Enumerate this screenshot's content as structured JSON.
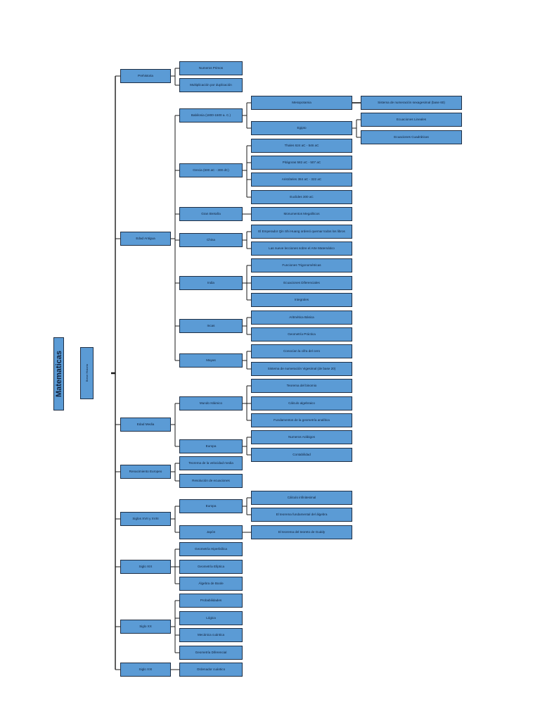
{
  "title": "Matematicas",
  "subtitle": "Breve Historia",
  "periods": [
    {
      "label": "Prehistoria",
      "children": [
        {
          "label": "Numeros Primos"
        },
        {
          "label": "Multiplicación por duplicación"
        }
      ]
    },
    {
      "label": "Edad Antigua",
      "children": [
        {
          "label": "Babilonia      (1800-1500 a. C.)",
          "children": [
            {
              "label": "Mesopotamia",
              "children": [
                {
                  "label": "Sistema de numeración sexagesimal (base 60)"
                }
              ]
            },
            {
              "label": "Egipto",
              "children": [
                {
                  "label": "Ecuaciones Lineales"
                },
                {
                  "label": "Ecuaciones Cuadráticas"
                }
              ]
            }
          ]
        },
        {
          "label": "Grecia (600 aC - 300 dC)",
          "children": [
            {
              "label": "Thales 624 aC - 546 aC"
            },
            {
              "label": "Pitágoras 582 aC - 507 aC"
            },
            {
              "label": "Aristóteles 384 aC - 322 aC"
            },
            {
              "label": "Euclides 300 aC"
            }
          ]
        },
        {
          "label": "Gran Bretaña",
          "children": [
            {
              "label": "Monumentos Megalíticos"
            }
          ]
        },
        {
          "label": "China",
          "children": [
            {
              "label": "El Emperador Qin Shi Huang ordenó quemar todos los libros"
            },
            {
              "label": "Las nueve lecciones sobre el Arte Matemático"
            }
          ]
        },
        {
          "label": "India",
          "children": [
            {
              "label": "Funciones Trigonométricas"
            },
            {
              "label": "Ecuaciones Diferenciales"
            },
            {
              "label": "Integrales"
            }
          ]
        },
        {
          "label": "Incas",
          "children": [
            {
              "label": "Aritmética Básica"
            },
            {
              "label": "Geometría Práctica"
            }
          ]
        },
        {
          "label": "Mayas",
          "children": [
            {
              "label": "Conocían la cifra del cero"
            },
            {
              "label": "Sistema de numeración Vigesimal (de base 20)"
            }
          ]
        }
      ]
    },
    {
      "label": "Edad Media",
      "children": [
        {
          "label": "Mundo Islámico",
          "children": [
            {
              "label": "Teorema del binomio"
            },
            {
              "label": "Cálculo algebraico"
            },
            {
              "label": "Fundamentos de la geometría analítica"
            }
          ]
        },
        {
          "label": "Europa",
          "children": [
            {
              "label": "Numeros Arábigos"
            },
            {
              "label": "Contabilidad"
            }
          ]
        }
      ]
    },
    {
      "label": "Renacimiento Europeo",
      "children": [
        {
          "label": "Teorema de la velocidad media"
        },
        {
          "label": "Resolución de ecuaciones"
        }
      ]
    },
    {
      "label": "Siglos XVII y XVIII",
      "children": [
        {
          "label": "Europa",
          "children": [
            {
              "label": "Cálculo infinitesimal"
            },
            {
              "label": "El teorema fundamental del álgebra"
            }
          ]
        },
        {
          "label": "Japón",
          "children": [
            {
              "label": "El teorema del teoreto de  Guddy"
            }
          ]
        }
      ]
    },
    {
      "label": "Siglo XIX",
      "children": [
        {
          "label": "Geometría Hiperbólica"
        },
        {
          "label": "Geometría Elíptica"
        },
        {
          "label": "Álgebra de Boole"
        }
      ]
    },
    {
      "label": "Siglo XX",
      "children": [
        {
          "label": "Probabilidades"
        },
        {
          "label": "Lógica"
        },
        {
          "label": "Mecánica cuántica"
        },
        {
          "label": "Geometría Diferencial"
        }
      ]
    },
    {
      "label": "Siglo XXI",
      "children": [
        {
          "label": "Ordenador  cuántico"
        }
      ]
    }
  ],
  "colors": {
    "box": "#5b9bd5",
    "border": "#1f2f45",
    "line": "#1a1a1a"
  }
}
